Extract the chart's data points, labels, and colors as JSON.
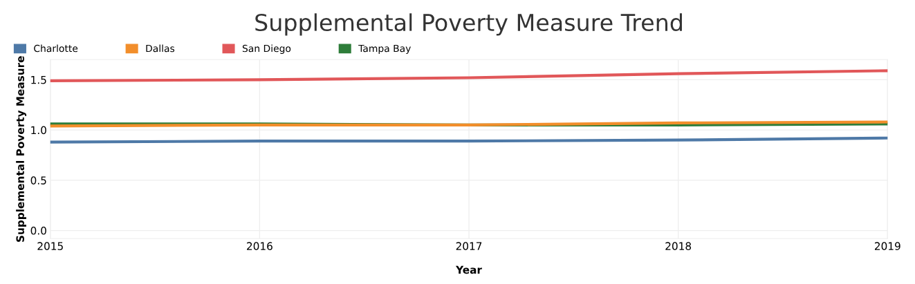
{
  "chart_data": {
    "type": "line",
    "title": "Supplemental Poverty Measure Trend",
    "xlabel": "Year",
    "ylabel": "Supplemental Poverty Measure",
    "x": [
      2015,
      2016,
      2017,
      2018,
      2019
    ],
    "series": [
      {
        "name": "Charlotte",
        "color": "#4e79a7",
        "values": [
          0.88,
          0.89,
          0.89,
          0.9,
          0.92
        ]
      },
      {
        "name": "Dallas",
        "color": "#f28e2b",
        "values": [
          1.04,
          1.05,
          1.05,
          1.07,
          1.08
        ]
      },
      {
        "name": "San Diego",
        "color": "#e15759",
        "values": [
          1.49,
          1.5,
          1.52,
          1.56,
          1.59
        ]
      },
      {
        "name": "Tampa Bay",
        "color": "#2e7d3a",
        "values": [
          1.06,
          1.06,
          1.05,
          1.05,
          1.06
        ]
      }
    ],
    "xlim": [
      2015,
      2019
    ],
    "xticks": [
      2015,
      2016,
      2017,
      2018,
      2019
    ],
    "ylim": [
      -0.08,
      1.7
    ],
    "yticks": [
      {
        "value": 0,
        "label": "0.0"
      },
      {
        "value": 0.5,
        "label": "0.5"
      },
      {
        "value": 1,
        "label": "1.0"
      },
      {
        "value": 1.5,
        "label": "1.5"
      }
    ],
    "grid": true,
    "legend": "top left",
    "marker": "none",
    "line_style": "solid"
  }
}
